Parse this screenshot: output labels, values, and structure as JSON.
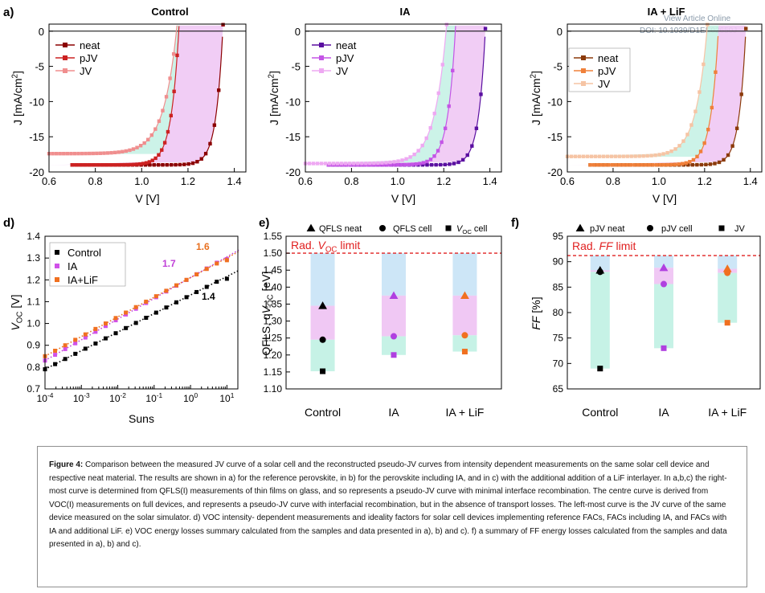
{
  "links": {
    "view_article": "View Article Online",
    "doi": "DOI: 10.1039/D1EE02650J"
  },
  "panel_letters": [
    "a)",
    "d)",
    "e)",
    "f)"
  ],
  "colors": {
    "control": [
      "#8b0000",
      "#cc2222",
      "#f08e8e"
    ],
    "ia": [
      "#5a0fa0",
      "#c455e6",
      "#eea8f2"
    ],
    "ialif": [
      "#8b3a0a",
      "#f0803a",
      "#f6c4a4"
    ],
    "fill_ideal": "#cde6f7",
    "fill_interface": "#f0c8f4",
    "fill_transport": "#c6f2e6",
    "rad_limit": "#e02020"
  },
  "chart_data": [
    {
      "type": "line",
      "title": "Control",
      "xlabel": "V [V]",
      "ylabel": "J [mA/cm2]",
      "xlim": [
        0.6,
        1.45
      ],
      "ylim": [
        -20,
        1
      ],
      "xticks": [
        "0.6",
        "0.8",
        "1.0",
        "1.2",
        "1.4"
      ],
      "yticks": [
        "0",
        "-5",
        "-10",
        "-15",
        "-20"
      ],
      "legend": [
        "neat",
        "pJV",
        "JV"
      ],
      "legend_position": "top-center",
      "series": [
        {
          "name": "neat",
          "jsc": -19.0,
          "voc": 1.35,
          "n": 1.15
        },
        {
          "name": "pJV",
          "jsc": -19.0,
          "voc": 1.16,
          "n": 1.3
        },
        {
          "name": "JV",
          "jsc": -17.4,
          "voc": 1.15,
          "n": 2.2
        }
      ]
    },
    {
      "type": "line",
      "title": "IA",
      "xlabel": "V [V]",
      "ylabel": "J [mA/cm2]",
      "xlim": [
        0.6,
        1.45
      ],
      "ylim": [
        -20,
        1
      ],
      "xticks": [
        "0.6",
        "0.8",
        "1.0",
        "1.2",
        "1.4"
      ],
      "yticks": [
        "0",
        "-5",
        "-10",
        "-15",
        "-20"
      ],
      "legend": [
        "neat",
        "pJV",
        "JV"
      ],
      "legend_position": "top-center",
      "series": [
        {
          "name": "neat",
          "jsc": -19.0,
          "voc": 1.38,
          "n": 1.15
        },
        {
          "name": "pJV",
          "jsc": -19.0,
          "voc": 1.25,
          "n": 1.3
        },
        {
          "name": "JV",
          "jsc": -18.8,
          "voc": 1.21,
          "n": 2.0
        }
      ]
    },
    {
      "type": "line",
      "title": "IA + LiF",
      "xlabel": "V [V]",
      "ylabel": "J [mA/cm2]",
      "xlim": [
        0.6,
        1.45
      ],
      "ylim": [
        -20,
        1
      ],
      "xticks": [
        "0.6",
        "0.8",
        "1.0",
        "1.2",
        "1.4"
      ],
      "yticks": [
        "0",
        "-5",
        "-10",
        "-15",
        "-20"
      ],
      "legend": [
        "neat",
        "pJV",
        "JV"
      ],
      "legend_position": "top-right",
      "series": [
        {
          "name": "neat",
          "jsc": -19.0,
          "voc": 1.38,
          "n": 1.15
        },
        {
          "name": "pJV",
          "jsc": -19.0,
          "voc": 1.26,
          "n": 1.3
        },
        {
          "name": "JV",
          "jsc": -17.8,
          "voc": 1.21,
          "n": 1.9
        }
      ]
    },
    {
      "type": "scatter",
      "xlabel": "Suns",
      "ylabel": "VOC [V]",
      "x_scale": "log",
      "xlim": [
        0.0001,
        20
      ],
      "ylim": [
        0.7,
        1.4
      ],
      "xticks": [
        "10-4",
        "10-3",
        "10-2",
        "10-1",
        "100",
        "101"
      ],
      "yticks": [
        "0.7",
        "0.8",
        "0.9",
        "1.0",
        "1.1",
        "1.2",
        "1.3",
        "1.4"
      ],
      "legend_position": "top-left",
      "series": [
        {
          "name": "Control",
          "v_at_1e-4": 0.79,
          "slope_per_decade": 0.085,
          "ideality": "1.4"
        },
        {
          "name": "IA",
          "v_at_1e-4": 0.83,
          "slope_per_decade": 0.095,
          "ideality": "1.7"
        },
        {
          "name": "IA+LiF",
          "v_at_1e-4": 0.85,
          "slope_per_decade": 0.09,
          "ideality": "1.6"
        }
      ]
    },
    {
      "type": "scatter",
      "ylabel": "QFLS, qVOC [eV]",
      "ylim": [
        1.1,
        1.55
      ],
      "categories": [
        "Control",
        "IA",
        "IA + LiF"
      ],
      "yticks": [
        "1.10",
        "1.15",
        "1.20",
        "1.25",
        "1.30",
        "1.35",
        "1.40",
        "1.45",
        "1.50",
        "1.55"
      ],
      "legend": [
        "QFLS neat",
        "QFLS cell",
        "VOC cell"
      ],
      "limit_label": "Rad. VOC limit",
      "limit": 1.5,
      "series": [
        {
          "name": "QFLS neat",
          "values": [
            1.345,
            1.375,
            1.375
          ]
        },
        {
          "name": "QFLS cell",
          "values": [
            1.245,
            1.255,
            1.258
          ]
        },
        {
          "name": "VOC cell",
          "values": [
            1.152,
            1.2,
            1.21
          ]
        }
      ]
    },
    {
      "type": "scatter",
      "ylabel": "FF [%]",
      "ylim": [
        65,
        95
      ],
      "categories": [
        "Control",
        "IA",
        "IA + LiF"
      ],
      "yticks": [
        "65",
        "70",
        "75",
        "80",
        "85",
        "90",
        "95"
      ],
      "legend": [
        "pJV neat",
        "pJV cell",
        "JV"
      ],
      "limit_label": "Rad. FF limit",
      "limit": 91.2,
      "series": [
        {
          "name": "pJV neat",
          "values": [
            88.3,
            88.8,
            88.6
          ]
        },
        {
          "name": "pJV cell",
          "values": [
            88.0,
            85.6,
            87.8
          ]
        },
        {
          "name": "JV",
          "values": [
            69.0,
            73.0,
            78.0
          ]
        }
      ]
    }
  ],
  "caption": {
    "label": "Figure 4:",
    "lines": [
      "Comparison between the measured JV curve of a solar cell and the reconstructed pseudo-JV curves from intensity dependent measurements on the same",
      "solar cell device and respective neat material. The results are shown in a) for the reference perovskite, in b) for the perovskite including IA, and in c) with the",
      "additional addition of a LiF interlayer. In a,b,c) the right-most curve is determined from QFLS(I) measurements of thin films on glass, and so represents a pseudo-JV",
      "curve with minimal interface recombination. The centre curve is derived from VOC(I) measurements on full devices, and represents a pseudo-JV curve with interfacial",
      "recombination, but in the absence of transport losses. The left-most curve is the JV curve of the same device measured on the solar simulator. d) VOC intensity-",
      "dependent measurements and ideality factors for solar cell devices implementing reference FACs, FACs including IA, and FACs with IA and additional LiF. e) VOC",
      "energy losses summary calculated from the samples and data presented in a), b) and c). f) a summary of FF energy losses calculated from the samples and data",
      "presented in a), b) and c)."
    ]
  }
}
